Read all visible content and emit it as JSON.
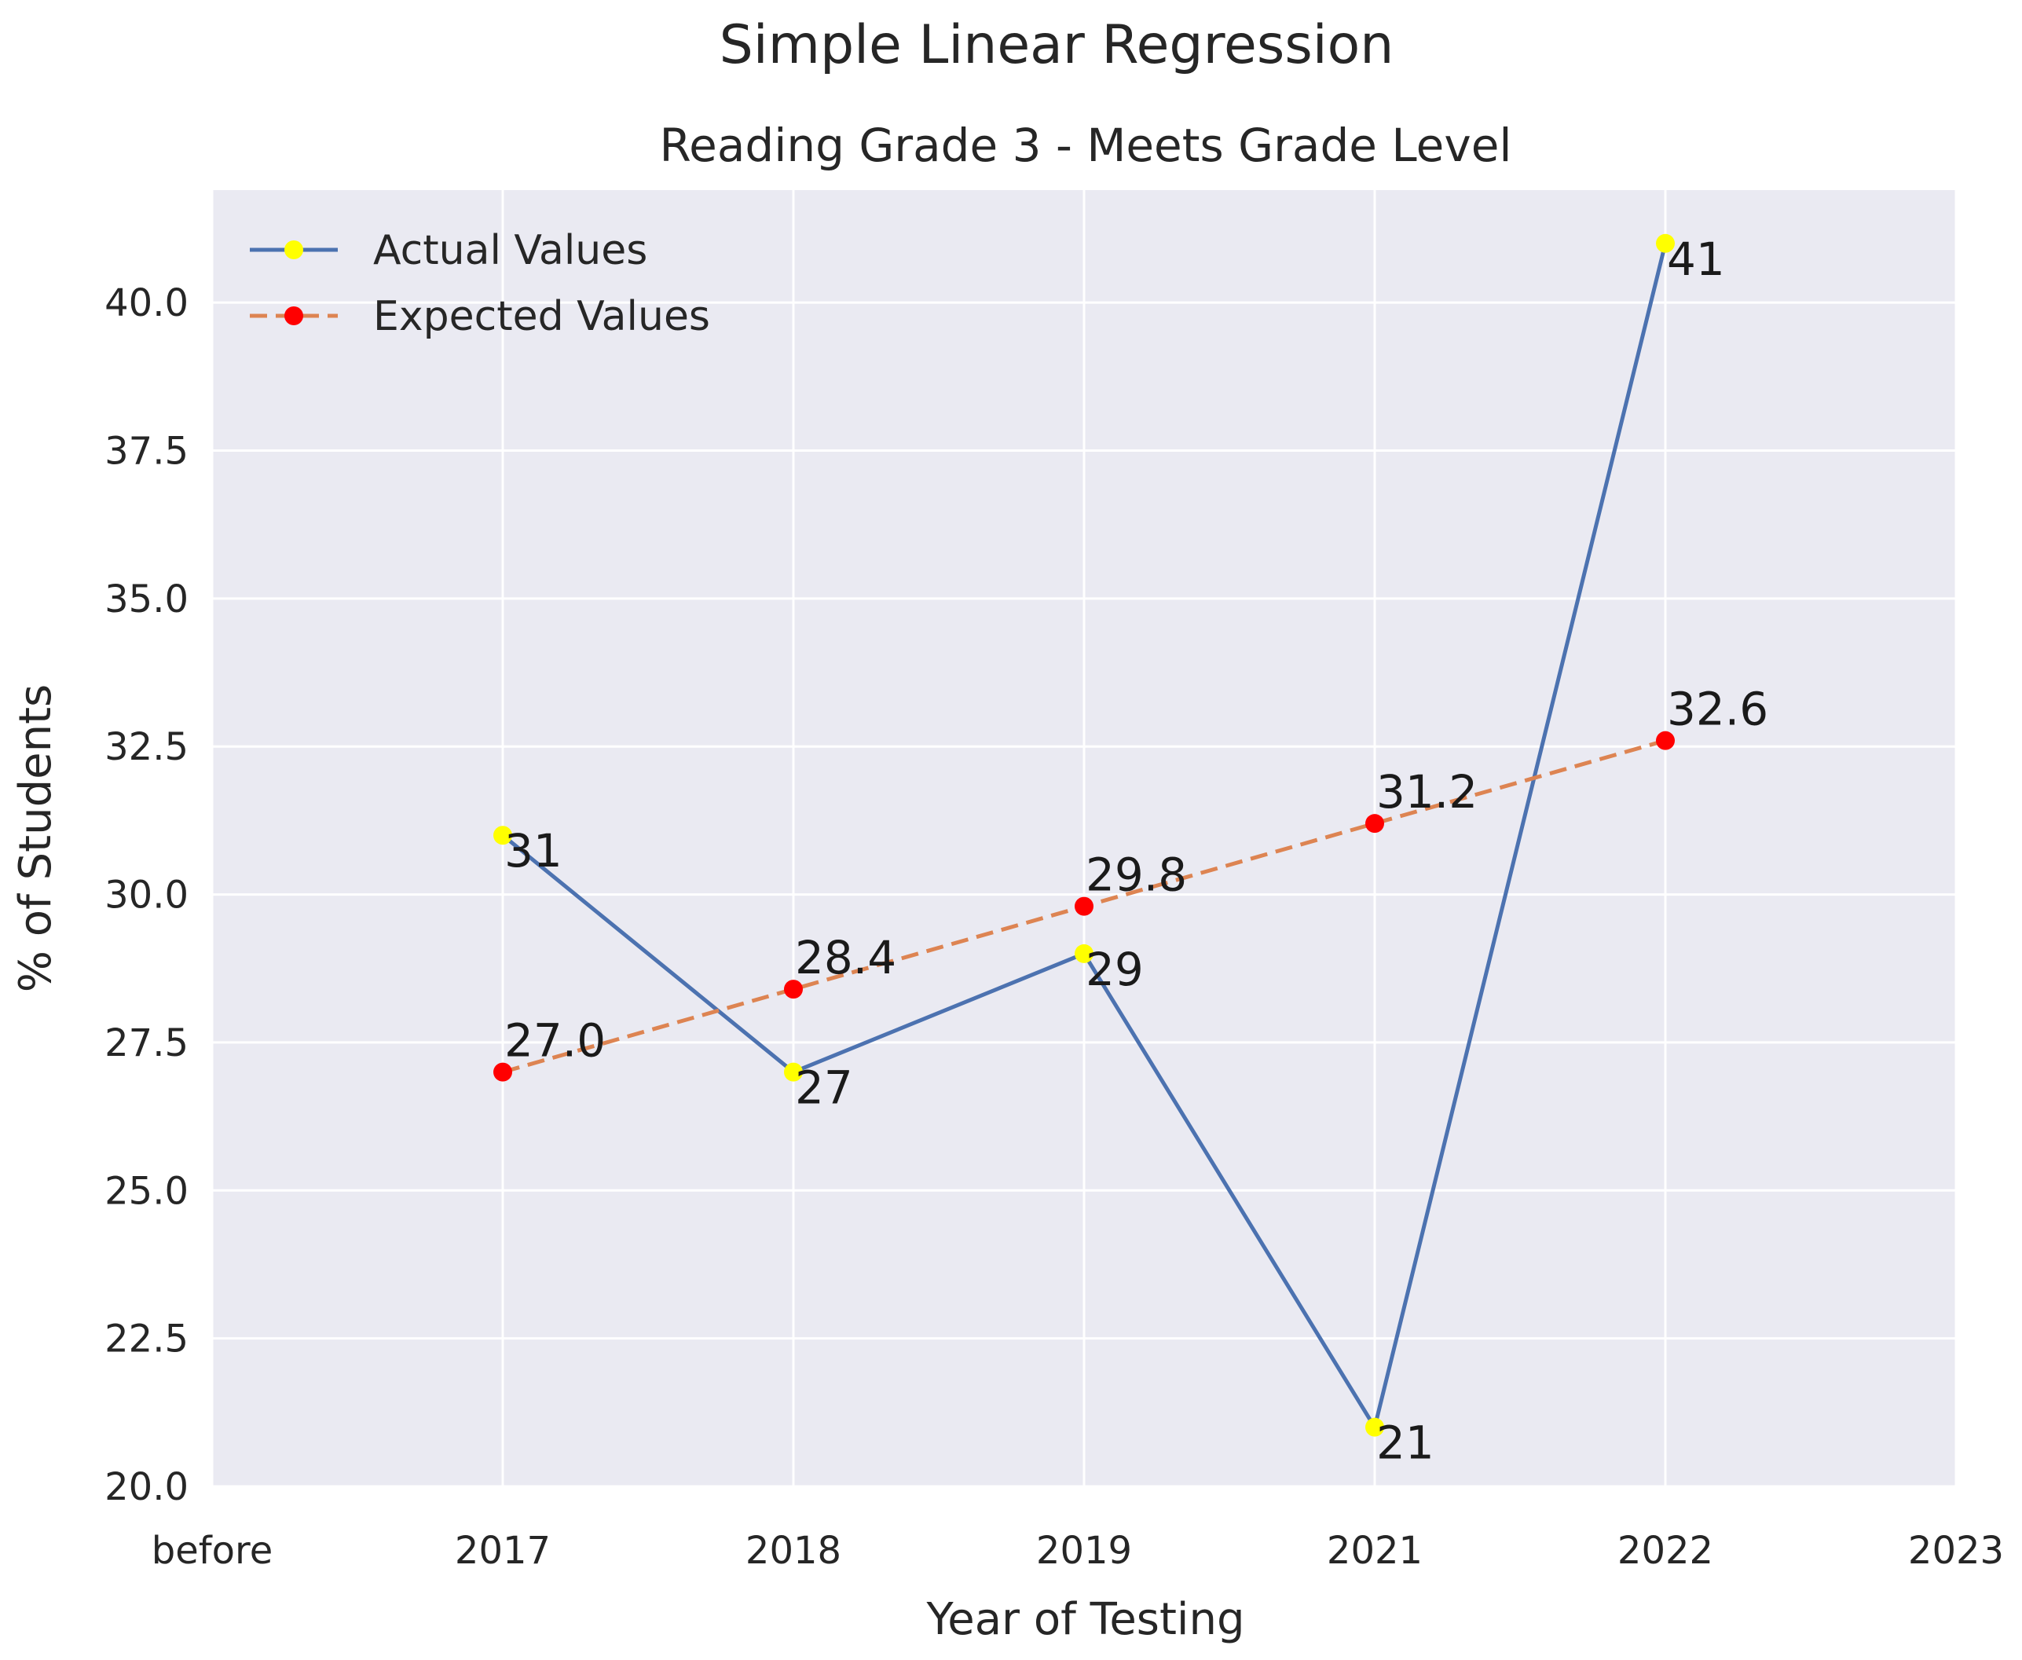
{
  "chart_data": {
    "type": "line",
    "suptitle": "Simple Linear Regression",
    "title": "Reading Grade 3 - Meets Grade Level",
    "xlabel": "Year of Testing",
    "ylabel": "% of Students",
    "x_tick_labels": [
      "before",
      "2017",
      "2018",
      "2019",
      "2021",
      "2022",
      "2023"
    ],
    "y_ticks": [
      20.0,
      22.5,
      25.0,
      27.5,
      30.0,
      32.5,
      35.0,
      37.5,
      40.0
    ],
    "y_tick_labels": [
      "20.0",
      "22.5",
      "25.0",
      "27.5",
      "30.0",
      "32.5",
      "35.0",
      "37.5",
      "40.0"
    ],
    "ylim": [
      20.0,
      41.9
    ],
    "xlim": [
      0,
      6
    ],
    "grid": true,
    "legend_position": "top-left",
    "background_color": "#eaeaf2",
    "grid_color": "#ffffff",
    "series": [
      {
        "name": "Actual Values",
        "x_index": [
          1,
          2,
          3,
          4,
          5
        ],
        "values": [
          31,
          27,
          29,
          21,
          41
        ],
        "labels": [
          "31",
          "27",
          "29",
          "21",
          "41"
        ],
        "line_color": "#4c72b0",
        "marker_color": "#ffff00",
        "line_style": "solid"
      },
      {
        "name": "Expected Values",
        "x_index": [
          1,
          2,
          3,
          4,
          5
        ],
        "values": [
          27.0,
          28.4,
          29.8,
          31.2,
          32.6
        ],
        "labels": [
          "27.0",
          "28.4",
          "29.8",
          "31.2",
          "32.6"
        ],
        "line_color": "#dd8452",
        "marker_color": "#ff0000",
        "line_style": "dashed"
      }
    ]
  }
}
